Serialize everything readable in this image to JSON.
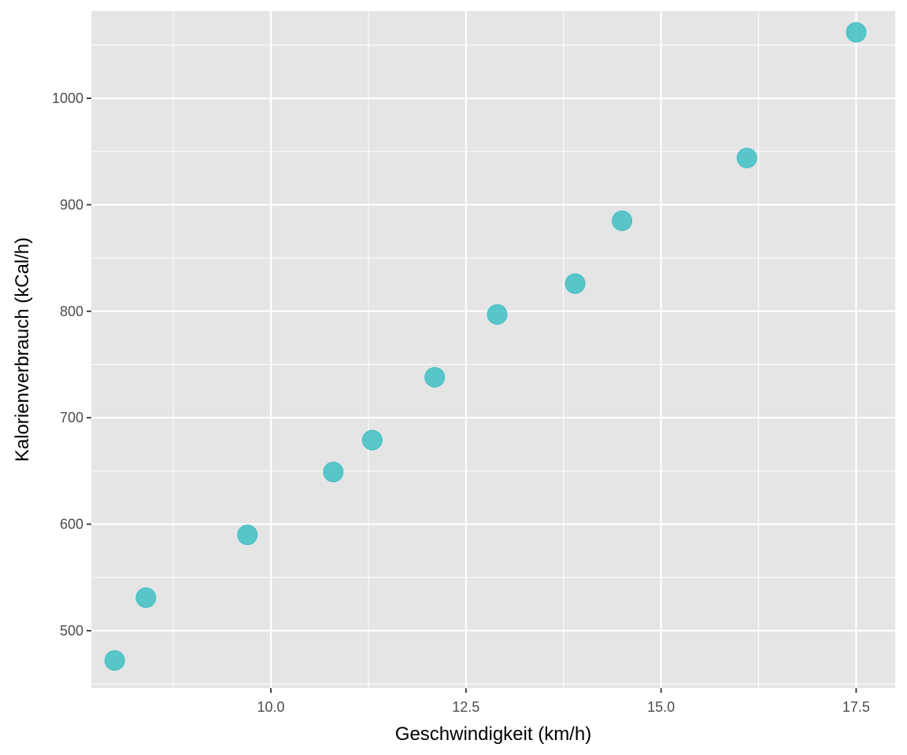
{
  "chart_data": {
    "type": "scatter",
    "title": "",
    "xlabel": "Geschwindigkeit (km/h)",
    "ylabel": "Kalorienverbrauch (kCal/h)",
    "xlim": [
      7.7,
      18.0
    ],
    "ylim": [
      446,
      1082
    ],
    "x_ticks": [
      10.0,
      12.5,
      15.0,
      17.5
    ],
    "x_tick_labels": [
      "10.0",
      "12.5",
      "15.0",
      "17.5"
    ],
    "y_ticks": [
      500,
      600,
      700,
      800,
      900,
      1000
    ],
    "y_tick_labels": [
      "500",
      "600",
      "700",
      "800",
      "900",
      "1000"
    ],
    "grid": true,
    "legend": "none",
    "colors": {
      "panel": "#e5e5e5",
      "grid": "#ffffff",
      "point": "#3fbfc4"
    },
    "series": [
      {
        "x": [
          8.0,
          8.4,
          9.7,
          10.8,
          11.3,
          12.1,
          12.9,
          13.9,
          14.5,
          16.1,
          17.5
        ],
        "y": [
          472,
          531,
          590,
          649,
          679,
          738,
          797,
          826,
          885,
          944,
          1062
        ]
      }
    ]
  }
}
